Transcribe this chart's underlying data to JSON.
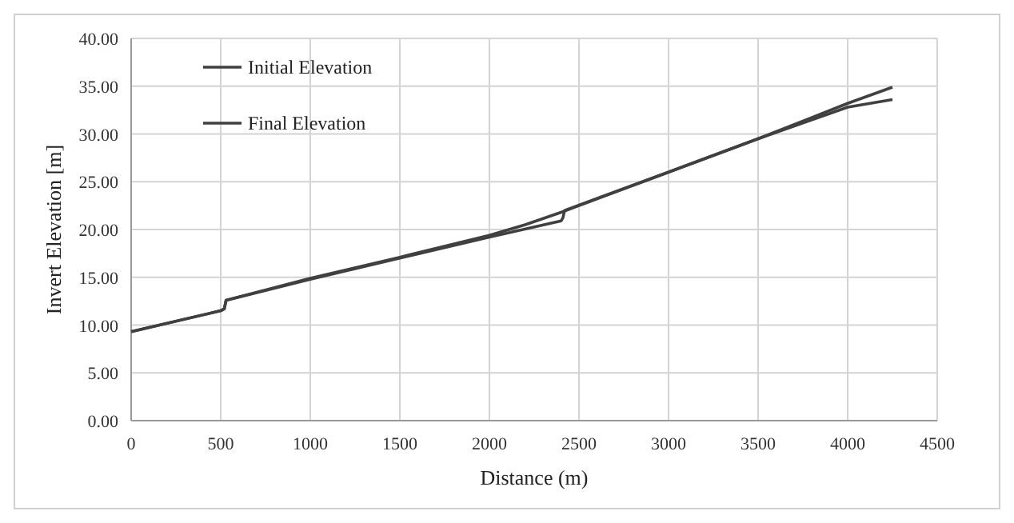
{
  "chart_data": {
    "type": "line",
    "xlabel": "Distance (m)",
    "ylabel": "Invert Elevation [m]",
    "xlim": [
      0,
      4500
    ],
    "xticks": [
      0,
      500,
      1000,
      1500,
      2000,
      2500,
      3000,
      3500,
      4000,
      4500
    ],
    "ylim": [
      0,
      40
    ],
    "yticks": [
      {
        "value": 0,
        "label": "0.00"
      },
      {
        "value": 5,
        "label": "5.00"
      },
      {
        "value": 10,
        "label": "10.00"
      },
      {
        "value": 15,
        "label": "15.00"
      },
      {
        "value": 20,
        "label": "20.00"
      },
      {
        "value": 25,
        "label": "25.00"
      },
      {
        "value": 30,
        "label": "30.00"
      },
      {
        "value": 35,
        "label": "35.00"
      },
      {
        "value": 40,
        "label": "40.00"
      }
    ],
    "grid": true,
    "legend": "top left",
    "marker": "none",
    "line_style": "solid",
    "series": [
      {
        "name": "Initial Elevation",
        "color": "#404040",
        "x": [
          0,
          500,
          520,
          530,
          1000,
          1500,
          2000,
          2400,
          2410,
          2420,
          3000,
          3500,
          4000,
          4250
        ],
        "values": [
          9.3,
          11.5,
          11.7,
          12.6,
          14.8,
          17.0,
          19.2,
          20.9,
          21.2,
          22.0,
          26.0,
          29.5,
          33.2,
          34.9
        ]
      },
      {
        "name": "Final Elevation",
        "color": "#404040",
        "x": [
          0,
          500,
          520,
          530,
          1000,
          1500,
          2000,
          2200,
          2400,
          2500,
          3000,
          3500,
          4000,
          4250
        ],
        "values": [
          9.3,
          11.5,
          11.7,
          12.6,
          14.9,
          17.1,
          19.4,
          20.5,
          21.8,
          22.5,
          26.0,
          29.5,
          32.8,
          33.6
        ]
      }
    ]
  }
}
